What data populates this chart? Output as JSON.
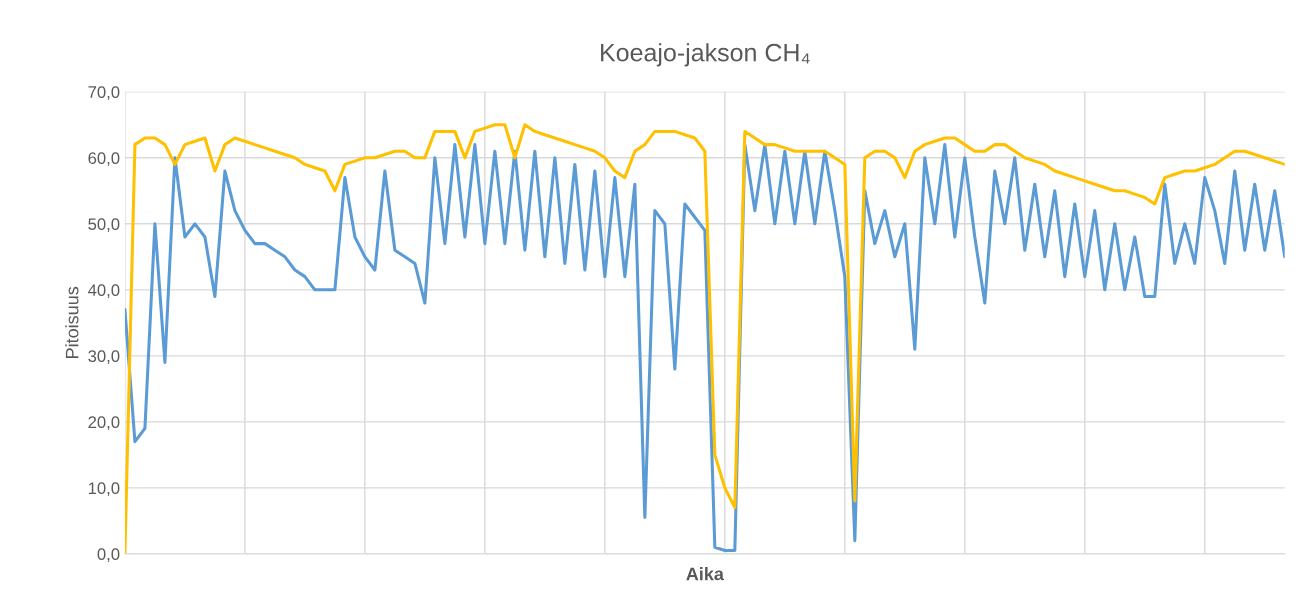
{
  "chart_data": {
    "type": "line",
    "title": "Koeajo-jakson CH₄",
    "xlabel": "Aika",
    "ylabel": "Pitoisuus",
    "categories": [
      null,
      null,
      null,
      null,
      null,
      null,
      null,
      null,
      null,
      null,
      null,
      null,
      null,
      null,
      null,
      null,
      null,
      null,
      null,
      null,
      null,
      null,
      null,
      null,
      null,
      null,
      null,
      null,
      null,
      null,
      null,
      null,
      null,
      null,
      null,
      null,
      null,
      null,
      null,
      null,
      null,
      null,
      null,
      null,
      null,
      null,
      null,
      null,
      null,
      null,
      null,
      null,
      null,
      null,
      null,
      null,
      null,
      null,
      null,
      null,
      null,
      null,
      null,
      null,
      null,
      null,
      null,
      null,
      null,
      null,
      null,
      null,
      null,
      null,
      null,
      null,
      null,
      null,
      null,
      null,
      null,
      null,
      null,
      null,
      null,
      null,
      null,
      null,
      null,
      null,
      null,
      null,
      null,
      null,
      null,
      null,
      null,
      null,
      null,
      null,
      null,
      null,
      null,
      null,
      null,
      null,
      null,
      null,
      null,
      null,
      null,
      null,
      null,
      null,
      null,
      null,
      null
    ],
    "ylim": [
      0,
      70
    ],
    "yticks": [
      {
        "value": 0,
        "label": "0,0"
      },
      {
        "value": 10,
        "label": "10,0"
      },
      {
        "value": 20,
        "label": "20,0"
      },
      {
        "value": 30,
        "label": "30,0"
      },
      {
        "value": 40,
        "label": "40,0"
      },
      {
        "value": 50,
        "label": "50,0"
      },
      {
        "value": 60,
        "label": "60,0"
      },
      {
        "value": 70,
        "label": "70,0"
      }
    ],
    "grid": true,
    "legend": false,
    "marker": "none",
    "line_style": "solid",
    "series": [
      {
        "color": "#5b9bd5",
        "values": [
          37,
          17,
          19,
          50,
          29,
          60,
          48,
          50,
          48,
          39,
          58,
          52,
          49,
          47,
          47,
          46,
          45,
          43,
          42,
          40,
          40,
          40,
          57,
          48,
          45,
          43,
          58,
          46,
          45,
          44,
          38,
          60,
          47,
          62,
          48,
          62,
          47,
          61,
          47,
          61,
          46,
          61,
          45,
          60,
          44,
          59,
          43,
          58,
          42,
          57,
          42,
          56,
          5.5,
          52,
          50,
          28,
          53,
          51,
          49,
          1,
          0.5,
          0.5,
          62,
          52,
          62,
          50,
          61,
          50,
          61,
          50,
          61,
          52,
          42,
          2,
          55,
          47,
          52,
          45,
          50,
          31,
          60,
          50,
          62,
          48,
          60,
          48,
          38,
          58,
          50,
          60,
          46,
          56,
          45,
          55,
          42,
          53,
          42,
          52,
          40,
          50,
          40,
          48,
          39,
          39,
          56,
          44,
          50,
          44,
          57,
          52,
          44,
          58,
          46,
          56,
          46,
          55,
          45
        ]
      },
      {
        "color": "#ffc000",
        "values": [
          0,
          62,
          63,
          63,
          62,
          59,
          62,
          62.5,
          63,
          58,
          62,
          63,
          62.5,
          62,
          61.5,
          61,
          60.5,
          60,
          59,
          58.5,
          58,
          55,
          59,
          59.5,
          60,
          60,
          60.5,
          61,
          61,
          60,
          60,
          64,
          64,
          64,
          60,
          64,
          64.5,
          65,
          65,
          60,
          65,
          64,
          63.5,
          63,
          62.5,
          62,
          61.5,
          61,
          60,
          58,
          57,
          61,
          62,
          64,
          64,
          64,
          63.5,
          63,
          61,
          15,
          10,
          7,
          64,
          63,
          62,
          62,
          61.5,
          61,
          61,
          61,
          61,
          60,
          59,
          8,
          60,
          61,
          61,
          60,
          57,
          61,
          62,
          62.5,
          63,
          63,
          62,
          61,
          61,
          62,
          62,
          61,
          60,
          59.5,
          59,
          58,
          57.5,
          57,
          56.5,
          56,
          55.5,
          55,
          55,
          54.5,
          54,
          53,
          57,
          57.5,
          58,
          58,
          58.5,
          59,
          60,
          61,
          61,
          60.5,
          60,
          59.5,
          59
        ]
      }
    ]
  }
}
